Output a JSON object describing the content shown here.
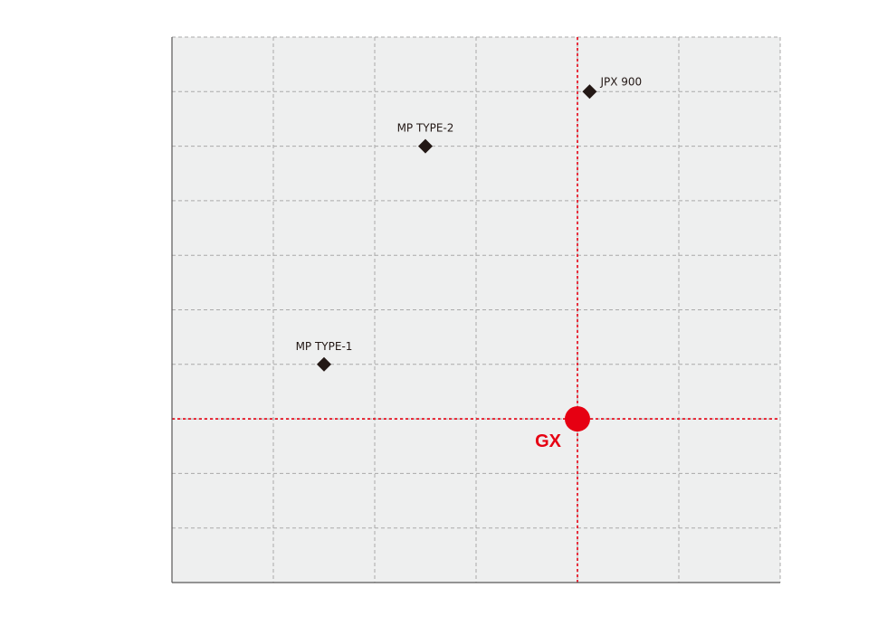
{
  "chart_data": {
    "type": "scatter",
    "title": "",
    "xlabel": "",
    "ylabel": "",
    "xlim": [
      0,
      6
    ],
    "ylim": [
      0,
      10
    ],
    "grid": true,
    "colors": {
      "plot_background": "#eeefef",
      "grid": "#aaaaaa",
      "axis": "#595757",
      "marker": "#231815",
      "highlight": "#e60012"
    },
    "points": [
      {
        "label": "MP TYPE-1",
        "x": 1.5,
        "y": 4.0
      },
      {
        "label": "MP TYPE-2",
        "x": 2.5,
        "y": 8.0
      },
      {
        "label": "JPX 900",
        "x": 4.12,
        "y": 9.0
      }
    ],
    "highlight": {
      "label": "GX",
      "x": 4.0,
      "y": 3.0
    }
  }
}
